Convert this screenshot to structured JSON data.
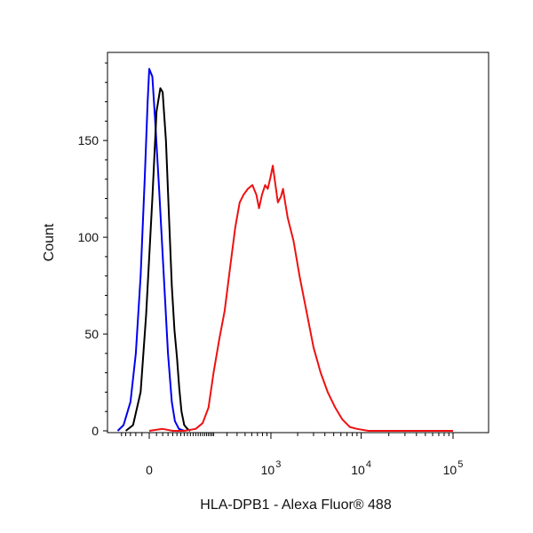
{
  "chart_data": {
    "type": "line",
    "title": "",
    "xlabel": "HLA-DPB1 - Alexa Fluor® 488",
    "ylabel": "Count",
    "x_scale": "biexponential",
    "ylim": [
      0,
      190
    ],
    "y_ticks": [
      {
        "value": 0,
        "label": "0"
      },
      {
        "value": 50,
        "label": "50"
      },
      {
        "value": 100,
        "label": "100"
      },
      {
        "value": 150,
        "label": "150"
      }
    ],
    "x_ticks": [
      {
        "value": 0,
        "base": "0",
        "exp": ""
      },
      {
        "value": 1000,
        "base": "10",
        "exp": "3"
      },
      {
        "value": 10000,
        "base": "10",
        "exp": "4"
      },
      {
        "value": 100000,
        "base": "10",
        "exp": "5"
      }
    ],
    "grid": false,
    "series": [
      {
        "color": "#0000ee",
        "points": [
          [
            -60,
            0
          ],
          [
            -45,
            3
          ],
          [
            -30,
            15
          ],
          [
            -20,
            40
          ],
          [
            -12,
            80
          ],
          [
            -6,
            130
          ],
          [
            -2,
            170
          ],
          [
            0,
            187
          ],
          [
            4,
            183
          ],
          [
            8,
            160
          ],
          [
            14,
            125
          ],
          [
            22,
            80
          ],
          [
            30,
            40
          ],
          [
            38,
            15
          ],
          [
            45,
            5
          ],
          [
            55,
            1
          ],
          [
            70,
            0
          ]
        ]
      },
      {
        "color": "#000000",
        "points": [
          [
            -40,
            0
          ],
          [
            -25,
            3
          ],
          [
            -12,
            20
          ],
          [
            -4,
            60
          ],
          [
            4,
            120
          ],
          [
            10,
            165
          ],
          [
            16,
            177
          ],
          [
            20,
            175
          ],
          [
            26,
            150
          ],
          [
            32,
            110
          ],
          [
            38,
            75
          ],
          [
            44,
            52
          ],
          [
            50,
            38
          ],
          [
            56,
            22
          ],
          [
            62,
            10
          ],
          [
            70,
            3
          ],
          [
            80,
            1
          ],
          [
            90,
            0
          ]
        ]
      },
      {
        "color": "#ee1111",
        "points": [
          [
            0,
            0
          ],
          [
            20,
            1
          ],
          [
            40,
            0
          ],
          [
            70,
            0
          ],
          [
            110,
            1
          ],
          [
            140,
            4
          ],
          [
            170,
            12
          ],
          [
            200,
            30
          ],
          [
            240,
            48
          ],
          [
            280,
            62
          ],
          [
            330,
            85
          ],
          [
            380,
            105
          ],
          [
            430,
            118
          ],
          [
            480,
            122
          ],
          [
            540,
            125
          ],
          [
            610,
            127
          ],
          [
            680,
            122
          ],
          [
            730,
            115
          ],
          [
            790,
            122
          ],
          [
            860,
            127
          ],
          [
            920,
            125
          ],
          [
            990,
            131
          ],
          [
            1050,
            137
          ],
          [
            1120,
            128
          ],
          [
            1200,
            118
          ],
          [
            1300,
            121
          ],
          [
            1370,
            125
          ],
          [
            1450,
            118
          ],
          [
            1550,
            110
          ],
          [
            1800,
            98
          ],
          [
            2100,
            80
          ],
          [
            2500,
            62
          ],
          [
            3000,
            43
          ],
          [
            3600,
            30
          ],
          [
            4300,
            20
          ],
          [
            5200,
            12
          ],
          [
            6200,
            6
          ],
          [
            7500,
            2
          ],
          [
            9000,
            1
          ],
          [
            12000,
            0
          ],
          [
            100000,
            0
          ]
        ]
      }
    ]
  }
}
